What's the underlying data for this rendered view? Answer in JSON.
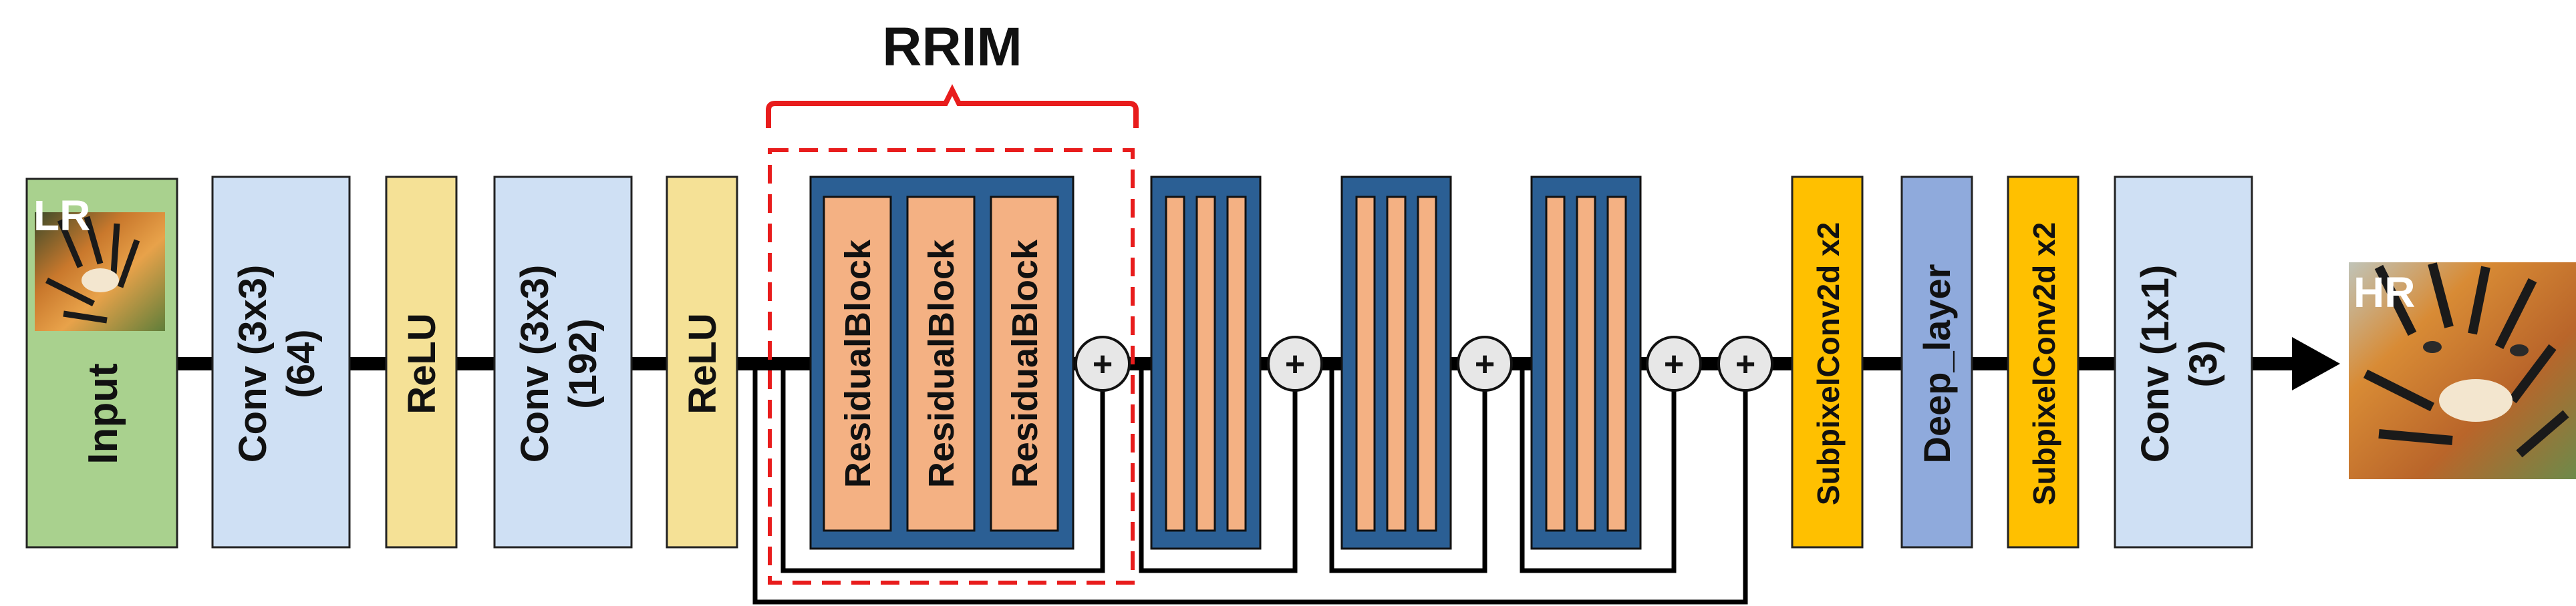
{
  "title": "RRIM",
  "input_image": {
    "label": "LR",
    "subject": "tiger"
  },
  "output_image": {
    "label": "HR",
    "subject": "tiger"
  },
  "layers": {
    "input": "Input",
    "conv1": {
      "line1": "Conv (3x3)",
      "line2": "(64)"
    },
    "relu1": "ReLU",
    "conv2": {
      "line1": "Conv (3x3)",
      "line2": "(192)"
    },
    "relu2": "ReLU",
    "residual_blocks": [
      "ResidualBlock",
      "ResidualBlock",
      "ResidualBlock"
    ],
    "subpixel1": "SubpixelConv2d x2",
    "deep_layer": "Deep_layer",
    "subpixel2": "SubpixelConv2d x2",
    "conv_final": {
      "line1": "Conv (1x1)",
      "line2": "(3)"
    }
  },
  "add_symbol": "+",
  "colors": {
    "input": "#a9d18e",
    "conv": "#cfe0f4",
    "relu": "#f5e196",
    "rrim_outer": "#2b5f94",
    "residual_block": "#f4b183",
    "subpixel": "#ffc000",
    "deep_layer": "#8faadc",
    "bracket": "#e81c1c",
    "add_node": "#e7e7e7",
    "arrow": "#000000"
  }
}
